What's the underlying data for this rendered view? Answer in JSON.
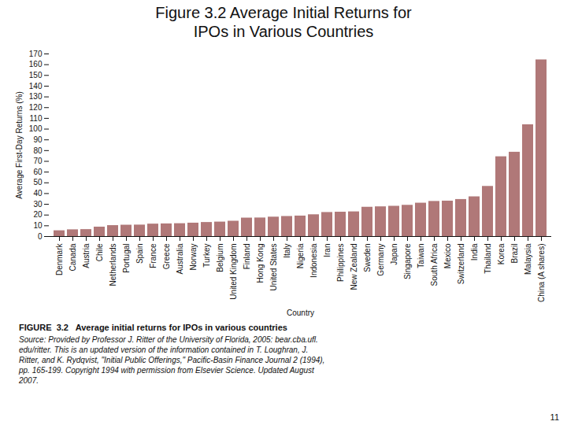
{
  "chart_data": {
    "type": "bar",
    "title": "Figure 3.2 Average Initial Returns for\nIPOs in Various Countries",
    "xlabel": "Country",
    "ylabel": "Average First-Day Returns (%)",
    "categories": [
      "Denmark",
      "Canada",
      "Austria",
      "Chile",
      "Netherlands",
      "Portugal",
      "Spain",
      "France",
      "Greece",
      "Australia",
      "Norway",
      "Turkey",
      "Belgium",
      "United Kingdom",
      "Finland",
      "Hong Kong",
      "United States",
      "Italy",
      "Nigeria",
      "Indonesia",
      "Iran",
      "Philippines",
      "New Zealand",
      "Sweden",
      "Germany",
      "Japan",
      "Singapore",
      "Taiwan",
      "South Africa",
      "Mexico",
      "Switzerland",
      "India",
      "Thailand",
      "Korea",
      "Brazil",
      "Malaysia",
      "China (A shares)"
    ],
    "values": [
      5.4,
      6.3,
      6.5,
      8.8,
      10.2,
      10.6,
      10.7,
      11.6,
      11.8,
      12.0,
      12.5,
      13.1,
      13.5,
      14.3,
      17.2,
      17.3,
      18.1,
      18.7,
      19.1,
      20.3,
      22.4,
      22.7,
      23.0,
      27.3,
      27.7,
      28.2,
      29.1,
      31.1,
      32.7,
      33.0,
      34.5,
      37.0,
      46.7,
      74.3,
      78.5,
      104.1,
      164.5
    ],
    "color": "#b07878",
    "ylim": [
      0,
      170
    ],
    "yticks": [
      0,
      10,
      20,
      30,
      40,
      50,
      60,
      70,
      80,
      90,
      100,
      110,
      120,
      130,
      140,
      150,
      160,
      170
    ],
    "grid": false,
    "annotations": [
      "FIGURE  3.2   Average initial returns for IPOs in various countries",
      "Source: Provided by Professor J. Ritter of the University of Florida, 2005: bear.cba.ufl.\nedu/ritter. This is an updated version of the information contained in T. Loughran, J.\nRitter, and K. Rydqvist, \"Initial Public Offerings,\" Pacific-Basin Finance Journal 2 (1994),\npp. 165-199. Copyright 1994 with permission from Elsevier Science. Updated August\n2007.",
      "11"
    ]
  }
}
